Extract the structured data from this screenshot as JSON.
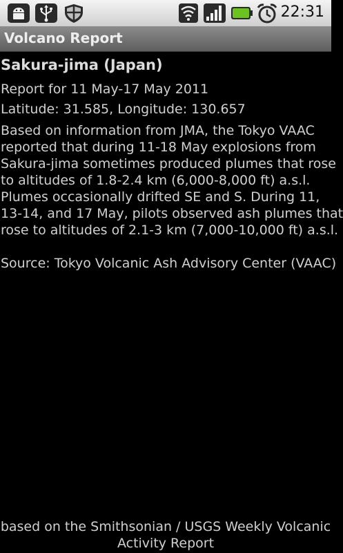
{
  "status_bar": {
    "time": "22:31",
    "icons": [
      "android-debug-icon",
      "usb-icon",
      "shield-icon",
      "wifi-icon",
      "signal-icon",
      "battery-icon",
      "alarm-clock-icon"
    ],
    "battery_color": "#6ac31e"
  },
  "app": {
    "title": "Volcano Report"
  },
  "report": {
    "volcano": "Sakura-jima (Japan)",
    "period": "Report for 11 May-17 May 2011",
    "coordinates": "Latitude: 31.585, Longitude: 130.657",
    "body_lines": [
      "Based on information from JMA, the Tokyo VAAC",
      "reported that during 11-18 May explosions from",
      "Sakura-jima sometimes produced plumes that rose",
      "to altitudes of 1.8-2.4 km (6,000-8,000 ft) a.s.l.",
      "Plumes occasionally drifted SE and S. During 11,",
      "13-14, and 17 May, pilots observed ash plumes that",
      "rose to altitudes of 2.1-3 km (7,000-10,000 ft) a.s.l."
    ],
    "source": "Source: Tokyo Volcanic Ash Advisory Center (VAAC)"
  },
  "footer": {
    "line1": "based on the Smithsonian / USGS Weekly Volcanic",
    "line2": "Activity Report"
  }
}
